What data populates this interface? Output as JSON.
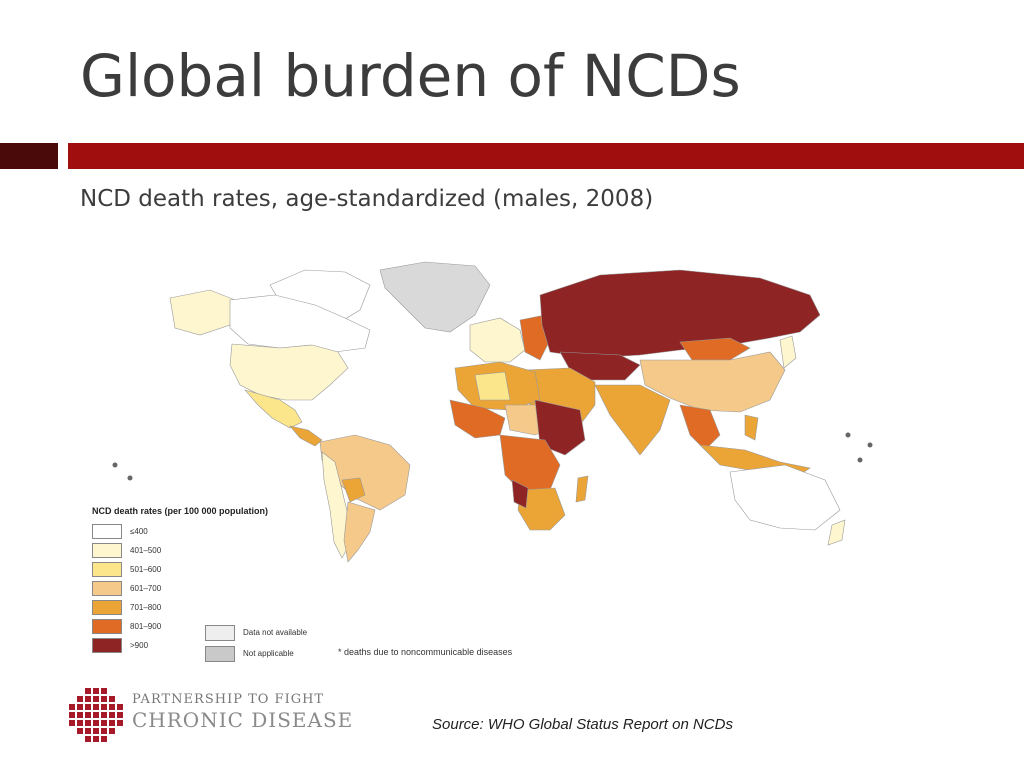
{
  "slide": {
    "title": "Global burden of NCDs",
    "subtitle": "NCD death rates, age-standardized (males, 2008)",
    "source": "Source:  WHO Global Status Report on NCDs"
  },
  "legend": {
    "title": "NCD death rates (per 100 000 population)",
    "items": [
      {
        "label": "≤400",
        "color": "#ffffff"
      },
      {
        "label": "401–500",
        "color": "#fdf6cf"
      },
      {
        "label": "501–600",
        "color": "#fbe68c"
      },
      {
        "label": "601–700",
        "color": "#f5c98a"
      },
      {
        "label": "701–800",
        "color": "#eba537"
      },
      {
        "label": "801–900",
        "color": "#df6b24"
      },
      {
        "label": ">900",
        "color": "#8f2424"
      }
    ],
    "extra": [
      {
        "label": "Data not available",
        "color": "#eeeeee"
      },
      {
        "label": "Not applicable",
        "color": "#c9c9c9"
      }
    ],
    "footnote": "* deaths due to noncommunicable diseases"
  },
  "logo": {
    "line1": "PARTNERSHIP TO FIGHT",
    "line2": "CHRONIC DISEASE",
    "color": "#a5192a"
  },
  "rule_colors": {
    "left": "#4a0a0a",
    "main": "#a00e0e"
  }
}
